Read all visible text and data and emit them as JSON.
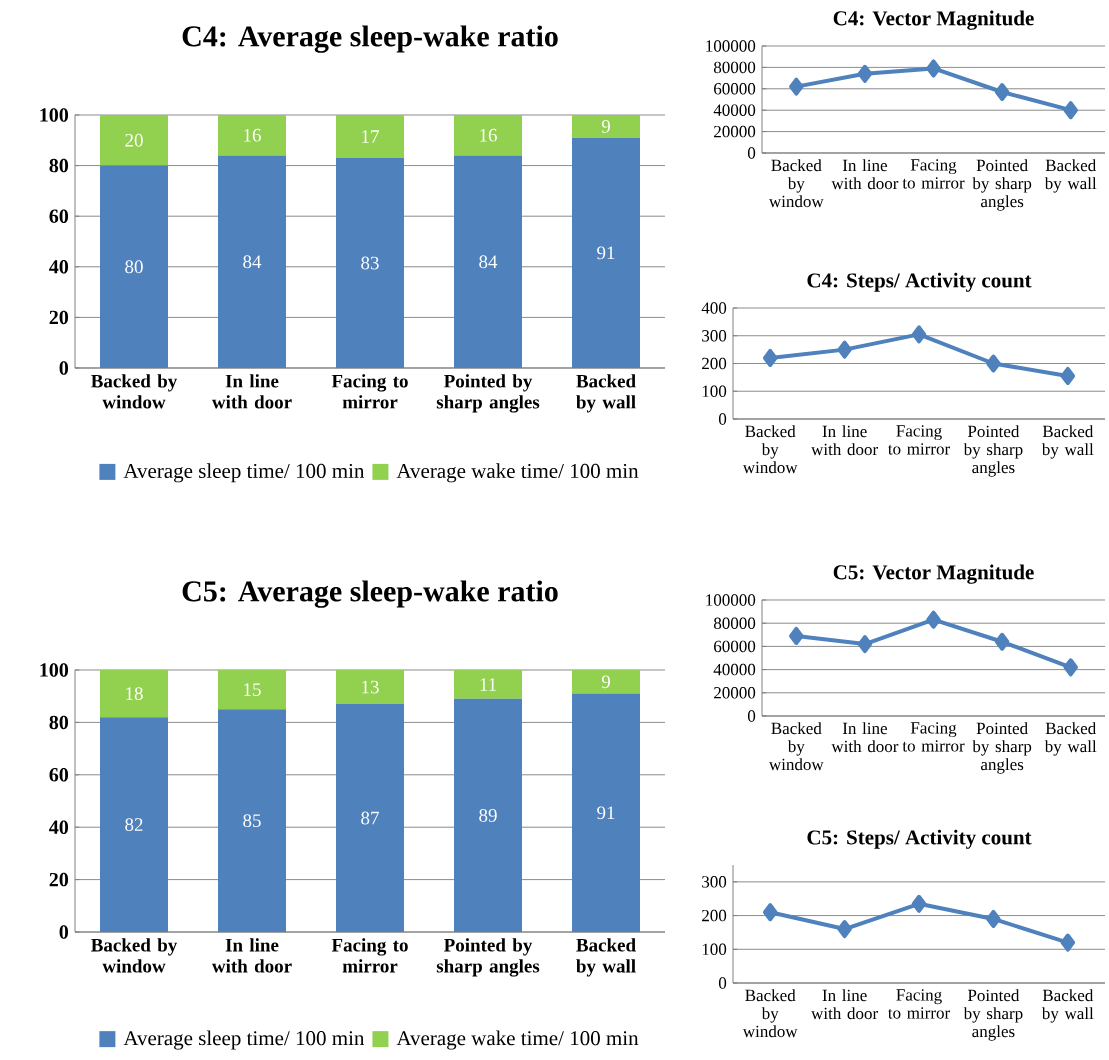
{
  "chart_data": [
    {
      "type": "bar",
      "title": "C4: Average sleep-wake ratio",
      "categories": [
        "Backed by window",
        "In line with door",
        "Facing to mirror",
        "Pointed by sharp angles",
        "Backed by wall"
      ],
      "series": [
        {
          "name": "Average sleep time/ 100 min",
          "color": "#4f81bd",
          "values": [
            80,
            84,
            83,
            84,
            91
          ]
        },
        {
          "name": "Average wake time/ 100 min",
          "color": "#92d050",
          "values": [
            20,
            16,
            17,
            16,
            9
          ]
        }
      ],
      "stacked": true,
      "data_labels": true,
      "ylim": [
        0,
        100
      ],
      "yticks": [
        0,
        20,
        40,
        60,
        80,
        100
      ],
      "grid": "y",
      "legend": "bottom"
    },
    {
      "type": "line",
      "title": "C4: Vector Magnitude",
      "categories": [
        "Backed by window",
        "In line with door",
        "Facing to mirror",
        "Pointed by sharp angles",
        "Backed by wall"
      ],
      "values": [
        62000,
        74000,
        79000,
        57000,
        40000
      ],
      "color": "#4f81bd",
      "marker": "diamond",
      "ylim": [
        0,
        100000
      ],
      "yticks": [
        0,
        20000,
        40000,
        60000,
        80000,
        100000
      ],
      "grid": "y"
    },
    {
      "type": "line",
      "title": "C4: Steps/ Activity count",
      "categories": [
        "Backed by window",
        "In line with door",
        "Facing to mirror",
        "Pointed by sharp angles",
        "Backed by wall"
      ],
      "values": [
        220,
        250,
        305,
        200,
        155
      ],
      "color": "#4f81bd",
      "marker": "diamond",
      "ylim": [
        0,
        400
      ],
      "yticks": [
        0,
        100,
        200,
        300,
        400
      ],
      "grid": "y"
    },
    {
      "type": "bar",
      "title": "C5: Average sleep-wake ratio",
      "categories": [
        "Backed by window",
        "In line with door",
        "Facing to mirror",
        "Pointed by sharp angles",
        "Backed by wall"
      ],
      "series": [
        {
          "name": "Average sleep time/ 100 min",
          "color": "#4f81bd",
          "values": [
            82,
            85,
            87,
            89,
            91
          ]
        },
        {
          "name": "Average wake time/ 100 min",
          "color": "#92d050",
          "values": [
            18,
            15,
            13,
            11,
            9
          ]
        }
      ],
      "stacked": true,
      "data_labels": true,
      "ylim": [
        0,
        100
      ],
      "yticks": [
        0,
        20,
        40,
        60,
        80,
        100
      ],
      "grid": "y",
      "legend": "bottom"
    },
    {
      "type": "line",
      "title": "C5: Vector Magnitude",
      "categories": [
        "Backed by window",
        "In line with door",
        "Facing to mirror",
        "Pointed by sharp angles",
        "Backed by wall"
      ],
      "values": [
        69000,
        62000,
        83000,
        64000,
        42000
      ],
      "color": "#4f81bd",
      "marker": "diamond",
      "ylim": [
        0,
        100000
      ],
      "yticks": [
        0,
        20000,
        40000,
        60000,
        80000,
        100000
      ],
      "grid": "y"
    },
    {
      "type": "line",
      "title": "C5: Steps/ Activity count",
      "categories": [
        "Backed by window",
        "In line with door",
        "Facing to mirror",
        "Pointed by sharp angles",
        "Backed by wall"
      ],
      "values": [
        210,
        160,
        235,
        190,
        120
      ],
      "color": "#4f81bd",
      "marker": "diamond",
      "ylim": [
        0,
        350
      ],
      "yticks": [
        0,
        100,
        200,
        300
      ],
      "grid": "y"
    }
  ]
}
